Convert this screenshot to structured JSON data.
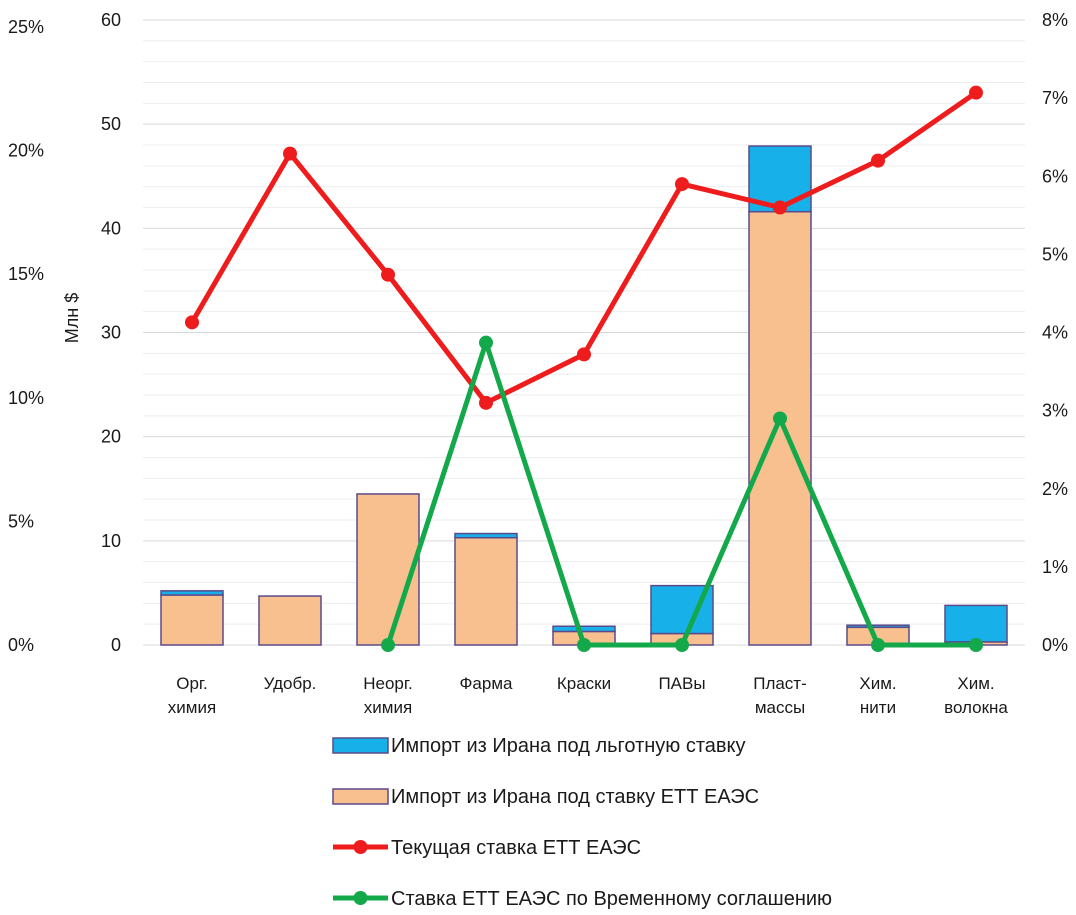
{
  "chart_data": {
    "type": "bar",
    "stacked": true,
    "title": "",
    "ylabel": "Млн $",
    "ylim": [
      0,
      60
    ],
    "yticks": [
      "0",
      "10",
      "20",
      "30",
      "40",
      "50",
      "60"
    ],
    "y2lim": [
      0,
      0.08
    ],
    "y2ticks": [
      "0%",
      "1%",
      "2%",
      "3%",
      "4%",
      "5%",
      "6%",
      "7%",
      "8%"
    ],
    "y3ticks": [
      "0%",
      "5%",
      "10%",
      "15%",
      "20%",
      "25%"
    ],
    "categories": [
      [
        "Орг.",
        "химия"
      ],
      [
        "Удобр."
      ],
      [
        "Неорг.",
        "химия"
      ],
      [
        "Фарма"
      ],
      [
        "Краски"
      ],
      [
        "ПАВы"
      ],
      [
        "Пласт-",
        "массы"
      ],
      [
        "Хим.",
        "нити"
      ],
      [
        "Хим.",
        "волокна"
      ]
    ],
    "series": [
      {
        "name": "Импорт из Ирана под ставку ЕТТ ЕАЭС",
        "kind": "bar",
        "color": "#F8C08F",
        "values": [
          4.8,
          4.7,
          14.5,
          10.3,
          1.3,
          1.1,
          41.6,
          1.7,
          0.3
        ]
      },
      {
        "name": "Импорт из Ирана под льготную ставку",
        "kind": "bar",
        "color": "#18B0E8",
        "values": [
          0.4,
          0.0,
          0.0,
          0.4,
          0.5,
          4.6,
          6.3,
          0.2,
          3.5
        ]
      },
      {
        "name": "Текущая ставка ЕТТ ЕАЭС",
        "kind": "line",
        "axis": "right",
        "color": "#EE1C1C",
        "values": [
          0.0413,
          0.0629,
          0.0474,
          0.031,
          0.0372,
          0.059,
          0.056,
          0.062,
          0.0707
        ]
      },
      {
        "name": "Ставка ЕТТ ЕАЭС по Временному соглашению",
        "kind": "line",
        "axis": "right",
        "color": "#13A84A",
        "values": [
          null,
          null,
          0.0,
          0.0387,
          0.0,
          0.0,
          0.029,
          0.0,
          0.0
        ]
      }
    ],
    "legend_order": [
      1,
      0,
      2,
      3
    ],
    "legend_position": "bottom",
    "grid": true,
    "bar_border_color": "#5B4A8B",
    "grid_color": "#D9D9D9"
  }
}
